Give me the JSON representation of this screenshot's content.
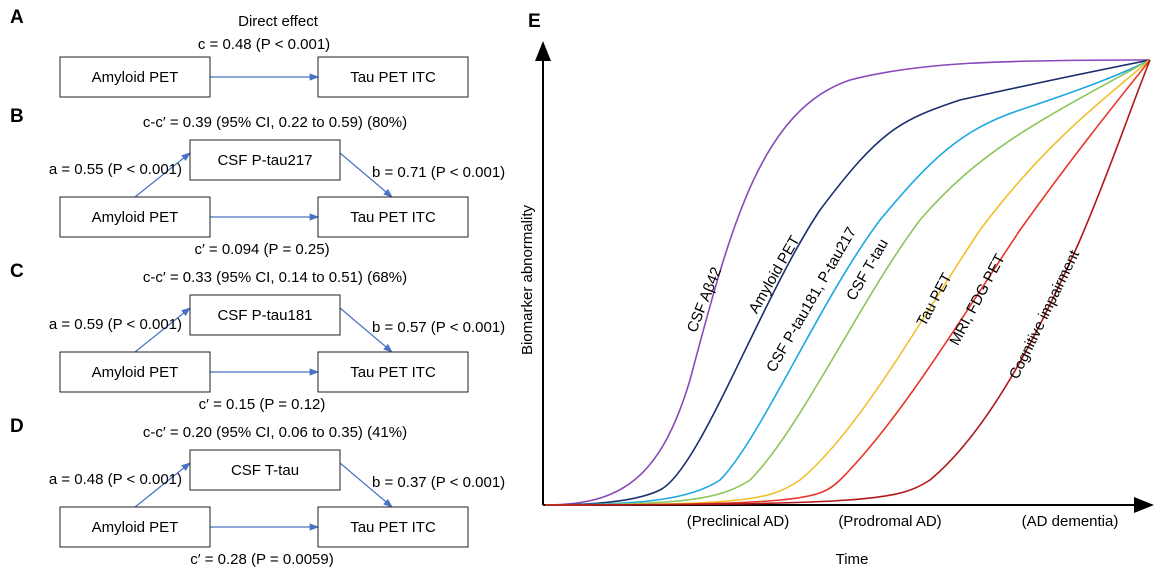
{
  "panels": [
    {
      "letter": "A",
      "title": "Direct effect",
      "effect": "c = 0.48 (P < 0.001)",
      "source": "Amyloid PET",
      "target": "Tau PET ITC"
    },
    {
      "letter": "B",
      "indirect": "c-c′ = 0.39 (95% CI, 0.22 to 0.59) (80%)",
      "mediator": "CSF P-tau217",
      "a": "a = 0.55 (P < 0.001)",
      "b": "b = 0.71 (P < 0.001)",
      "source": "Amyloid PET",
      "target": "Tau PET ITC",
      "direct": "c′ = 0.094 (P = 0.25)"
    },
    {
      "letter": "C",
      "indirect": "c-c′ = 0.33 (95% CI, 0.14 to 0.51) (68%)",
      "mediator": "CSF P-tau181",
      "a": "a = 0.59 (P < 0.001)",
      "b": "b = 0.57 (P < 0.001)",
      "source": "Amyloid PET",
      "target": "Tau PET ITC",
      "direct": "c′ = 0.15 (P = 0.12)"
    },
    {
      "letter": "D",
      "indirect": "c-c′ = 0.20 (95% CI, 0.06 to 0.35) (41%)",
      "mediator": "CSF T-tau",
      "a": "a = 0.48 (P < 0.001)",
      "b": "b = 0.37 (P < 0.001)",
      "source": "Amyloid PET",
      "target": "Tau PET ITC",
      "direct": "c′ = 0.28 (P = 0.0059)"
    }
  ],
  "model": {
    "letter": "E",
    "ylabel": "Biomarker abnormality",
    "xlabel": "Time",
    "stages": [
      "(Preclinical AD)",
      "(Prodromal AD)",
      "(AD dementia)"
    ],
    "curves": [
      "CSF Aβ42",
      "Amyloid PET",
      "CSF P-tau181, P-tau217",
      "CSF T-tau",
      "Tau PET",
      "MRI, FDG PET",
      "Cognitive impairment"
    ]
  }
}
